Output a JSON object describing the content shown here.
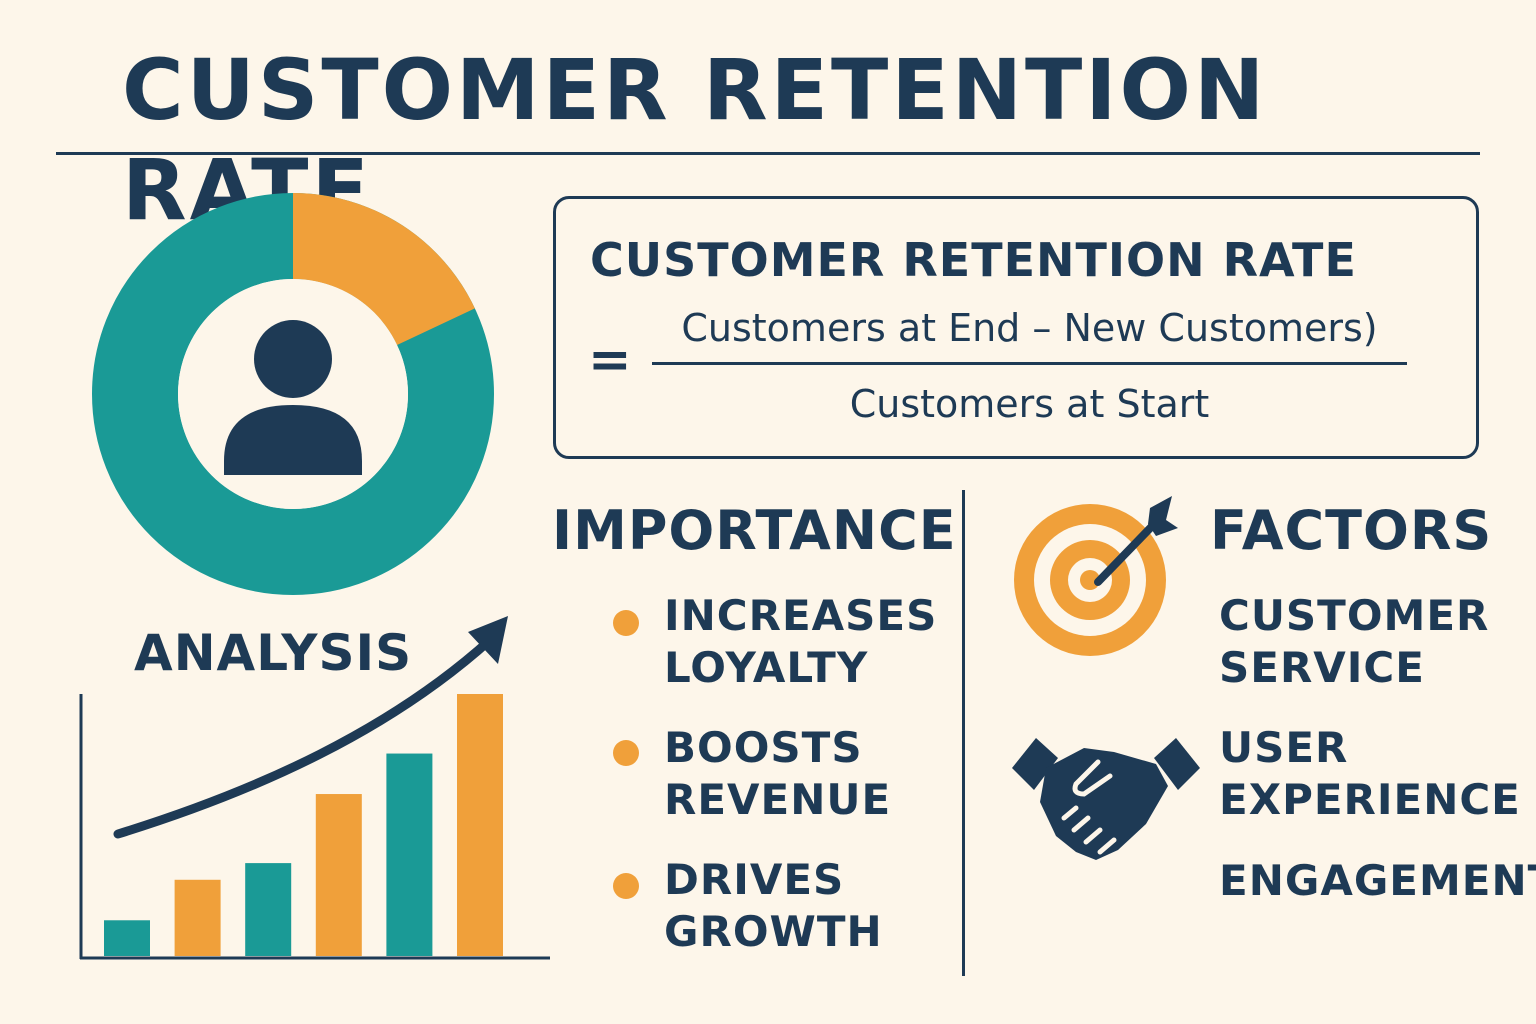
{
  "title": "CUSTOMER RETENTION RATE",
  "colors": {
    "navy": "#1e3a55",
    "teal": "#1a9a96",
    "orange": "#f0a03a",
    "background": "#fdf6ea"
  },
  "donut": {
    "share_teal": 0.82,
    "share_orange": 0.18,
    "icon": "person-icon"
  },
  "formula": {
    "title": "CUSTOMER RETENTION RATE",
    "equals": "=",
    "numerator": "Customers at End – New Customers)",
    "denominator": "Customers at Start"
  },
  "analysis": {
    "label": "ANALYSIS",
    "bars": [
      {
        "value": 1.5,
        "color": "teal"
      },
      {
        "value": 3.2,
        "color": "orange"
      },
      {
        "value": 3.9,
        "color": "teal"
      },
      {
        "value": 6.8,
        "color": "orange"
      },
      {
        "value": 8.5,
        "color": "teal"
      },
      {
        "value": 11.0,
        "color": "orange"
      }
    ],
    "trend_icon": "trend-arrow-icon"
  },
  "importance": {
    "title": "IMPORTANCE",
    "items": [
      {
        "line1": "INCREASES",
        "line2": "LOYALTY"
      },
      {
        "line1": "BOOSTS",
        "line2": "REVENUE"
      },
      {
        "line1": "DRIVES",
        "line2": "GROWTH"
      }
    ]
  },
  "factors": {
    "title": "FACTORS",
    "items": [
      {
        "line1": "CUSTOMER",
        "line2": "SERVICE"
      },
      {
        "line1": "USER",
        "line2": "EXPERIENCE"
      },
      {
        "line1": "ENGAGEMENT",
        "line2": ""
      }
    ],
    "icons": [
      "target-icon",
      "handshake-icon"
    ]
  }
}
